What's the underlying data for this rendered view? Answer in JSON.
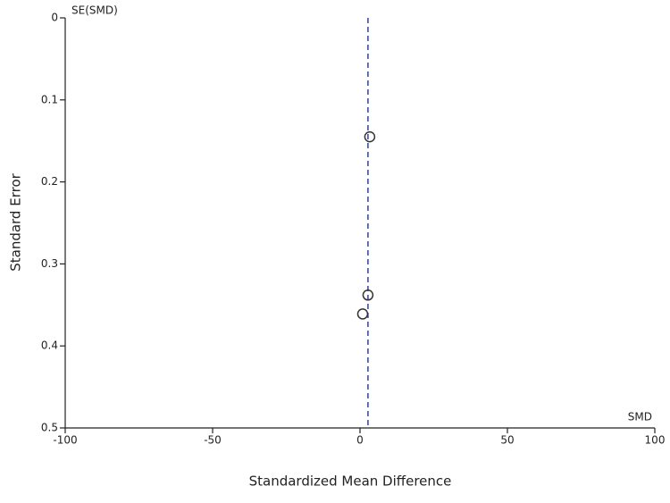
{
  "chart_data": {
    "type": "scatter",
    "x_label": "Standardized Mean Difference",
    "y_label": "Standard Error",
    "x_axis_name": "SMD",
    "y_axis_name": "SE(SMD)",
    "x": [
      3.3,
      2.7,
      0.9
    ],
    "values": [
      0.145,
      0.338,
      0.361
    ],
    "reference_line": 2.7,
    "reference_color": "#2b3fbf",
    "marker_color": "#333333",
    "xlim": [
      -100,
      100
    ],
    "xticks": [
      -100,
      -50,
      0,
      50,
      100
    ],
    "ylim": [
      0,
      0.5
    ],
    "yticks": [
      0,
      0.1,
      0.2,
      0.3,
      0.4,
      0.5
    ],
    "y_inverted": true
  }
}
